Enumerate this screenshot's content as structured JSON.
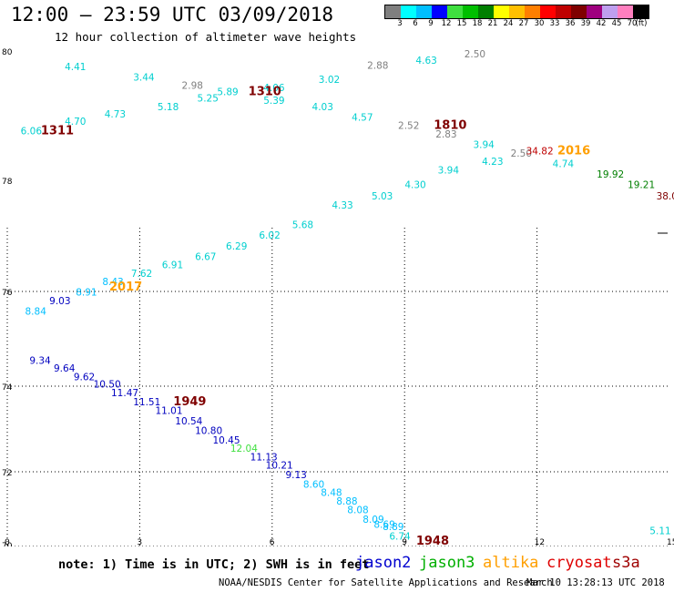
{
  "header": {
    "title": "12:00 – 23:59 UTC 03/09/2018",
    "subtitle": "12 hour collection of altimeter wave heights"
  },
  "colorbar": {
    "colors": [
      "#7f7f7f",
      "#00ffff",
      "#00bfff",
      "#0000ff",
      "#3fdf3f",
      "#00bf00",
      "#007f00",
      "#ffff00",
      "#ffbf00",
      "#ff7f00",
      "#ff0000",
      "#bf0000",
      "#7f0000",
      "#9f007f",
      "#bf9fef",
      "#ff7fbf",
      "#000000"
    ],
    "labels": [
      "3",
      "6",
      "9",
      "12",
      "15",
      "18",
      "21",
      "24",
      "27",
      "30",
      "33",
      "36",
      "39",
      "42",
      "45",
      "70",
      "(ft)"
    ]
  },
  "map": {
    "x_ticks": [
      "0",
      "3",
      "6",
      "9",
      "12",
      "15"
    ],
    "y_ticks": [
      "80",
      "78",
      "76",
      "74",
      "72",
      "70"
    ]
  },
  "observations": [
    {
      "text": "4.41",
      "color": "#00cfcf",
      "lon": 1.55,
      "lat": 79.45
    },
    {
      "text": "3.44",
      "color": "#00cfcf",
      "lon": 3.1,
      "lat": 79.2
    },
    {
      "text": "2.98",
      "color": "#7f7f7f",
      "lon": 4.2,
      "lat": 79.0
    },
    {
      "text": "4.06",
      "color": "#00cfcf",
      "lon": 6.05,
      "lat": 78.95
    },
    {
      "text": "3.02",
      "color": "#00cfcf",
      "lon": 7.3,
      "lat": 79.15
    },
    {
      "text": "2.88",
      "color": "#7f7f7f",
      "lon": 8.4,
      "lat": 79.48
    },
    {
      "text": "4.63",
      "color": "#00cfcf",
      "lon": 9.5,
      "lat": 79.6
    },
    {
      "text": "2.50",
      "color": "#7f7f7f",
      "lon": 10.6,
      "lat": 79.75
    },
    {
      "text": "5.25",
      "color": "#00cfcf",
      "lon": 4.55,
      "lat": 78.7
    },
    {
      "text": "5.89",
      "color": "#00cfcf",
      "lon": 5.0,
      "lat": 78.85
    },
    {
      "text": "5.39",
      "color": "#00cfcf",
      "lon": 6.05,
      "lat": 78.65
    },
    {
      "text": "5.18",
      "color": "#00cfcf",
      "lon": 3.65,
      "lat": 78.5
    },
    {
      "text": "4.03",
      "color": "#00cfcf",
      "lon": 7.15,
      "lat": 78.5
    },
    {
      "text": "4.70",
      "color": "#00cfcf",
      "lon": 1.55,
      "lat": 78.15
    },
    {
      "text": "4.73",
      "color": "#00cfcf",
      "lon": 2.45,
      "lat": 78.33
    },
    {
      "text": "4.57",
      "color": "#00cfcf",
      "lon": 8.05,
      "lat": 78.25
    },
    {
      "text": "6.06",
      "color": "#00cfcf",
      "lon": 0.55,
      "lat": 77.93
    },
    {
      "text": "2.52",
      "color": "#7f7f7f",
      "lon": 9.1,
      "lat": 78.05
    },
    {
      "text": "2.83",
      "color": "#7f7f7f",
      "lon": 9.95,
      "lat": 77.85
    },
    {
      "text": "3.94",
      "color": "#00cfcf",
      "lon": 10.8,
      "lat": 77.6
    },
    {
      "text": "2.50",
      "color": "#7f7f7f",
      "lon": 11.65,
      "lat": 77.4
    },
    {
      "text": "34.82",
      "color": "#bf0000",
      "lon": 12.0,
      "lat": 77.45
    },
    {
      "text": "4.23",
      "color": "#00cfcf",
      "lon": 11.0,
      "lat": 77.2
    },
    {
      "text": "4.74",
      "color": "#00cfcf",
      "lon": 12.6,
      "lat": 77.15
    },
    {
      "text": "19.92",
      "color": "#007f00",
      "lon": 13.6,
      "lat": 76.9
    },
    {
      "text": "19.21",
      "color": "#007f00",
      "lon": 14.3,
      "lat": 76.65
    },
    {
      "text": "38.0",
      "color": "#7f0000",
      "lon": 14.95,
      "lat": 76.38
    },
    {
      "text": "3.94",
      "color": "#00cfcf",
      "lon": 10.0,
      "lat": 77.0
    },
    {
      "text": "4.30",
      "color": "#00cfcf",
      "lon": 9.25,
      "lat": 76.65
    },
    {
      "text": "5.03",
      "color": "#00cfcf",
      "lon": 8.5,
      "lat": 76.38
    },
    {
      "text": "4.33",
      "color": "#00cfcf",
      "lon": 7.6,
      "lat": 76.17
    },
    {
      "text": "5.68",
      "color": "#00cfcf",
      "lon": 6.7,
      "lat": 75.7
    },
    {
      "text": "6.02",
      "color": "#00cfcf",
      "lon": 5.95,
      "lat": 75.45
    },
    {
      "text": "6.29",
      "color": "#00cfcf",
      "lon": 5.2,
      "lat": 75.2
    },
    {
      "text": "6.67",
      "color": "#00cfcf",
      "lon": 4.5,
      "lat": 74.95
    },
    {
      "text": "6.91",
      "color": "#00cfcf",
      "lon": 3.75,
      "lat": 74.75
    },
    {
      "text": "7.62",
      "color": "#00cfcf",
      "lon": 3.05,
      "lat": 74.55
    },
    {
      "text": "8.43",
      "color": "#00bfff",
      "lon": 2.4,
      "lat": 74.35
    },
    {
      "text": "8.91",
      "color": "#00bfff",
      "lon": 1.8,
      "lat": 74.1
    },
    {
      "text": "9.03",
      "color": "#0000bf",
      "lon": 1.2,
      "lat": 73.9
    },
    {
      "text": "8.84",
      "color": "#00bfff",
      "lon": 0.65,
      "lat": 73.65
    },
    {
      "text": "9.34",
      "color": "#0000bf",
      "lon": 0.75,
      "lat": 72.48
    },
    {
      "text": "9.64",
      "color": "#0000bf",
      "lon": 1.3,
      "lat": 72.3
    },
    {
      "text": "9.62",
      "color": "#0000bf",
      "lon": 1.75,
      "lat": 72.1
    },
    {
      "text": "10.50",
      "color": "#0000bf",
      "lon": 2.2,
      "lat": 71.92
    },
    {
      "text": "11.47",
      "color": "#0000bf",
      "lon": 2.6,
      "lat": 71.72
    },
    {
      "text": "11.51",
      "color": "#0000bf",
      "lon": 3.1,
      "lat": 71.5
    },
    {
      "text": "11.01",
      "color": "#0000bf",
      "lon": 3.6,
      "lat": 71.3
    },
    {
      "text": "10.54",
      "color": "#0000bf",
      "lon": 4.05,
      "lat": 71.05
    },
    {
      "text": "10.80",
      "color": "#0000bf",
      "lon": 4.5,
      "lat": 70.82
    },
    {
      "text": "10.45",
      "color": "#0000bf",
      "lon": 4.9,
      "lat": 70.6
    },
    {
      "text": "12.04",
      "color": "#3fdf3f",
      "lon": 5.3,
      "lat": 70.4
    },
    {
      "text": "11.13",
      "color": "#0000bf",
      "lon": 5.75,
      "lat": 70.2
    },
    {
      "text": "10.21",
      "color": "#0000bf",
      "lon": 6.1,
      "lat": 70.0
    },
    {
      "text": "9.13",
      "color": "#0000bf",
      "lon": 6.55,
      "lat": 69.78
    },
    {
      "text": "8.60",
      "color": "#00bfff",
      "lon": 6.95,
      "lat": 69.55
    },
    {
      "text": "8.48",
      "color": "#00bfff",
      "lon": 7.35,
      "lat": 69.35
    },
    {
      "text": "8.88",
      "color": "#00bfff",
      "lon": 7.7,
      "lat": 69.15
    },
    {
      "text": "8.08",
      "color": "#00bfff",
      "lon": 7.95,
      "lat": 68.95
    },
    {
      "text": "8.09",
      "color": "#00bfff",
      "lon": 8.3,
      "lat": 68.72
    },
    {
      "text": "8.89",
      "color": "#00bfff",
      "lon": 8.75,
      "lat": 68.55
    },
    {
      "text": "8.69",
      "color": "#00bfff",
      "lon": 8.55,
      "lat": 68.6
    },
    {
      "text": "6.74",
      "color": "#00cfcf",
      "lon": 8.9,
      "lat": 68.32
    },
    {
      "text": "5.11",
      "color": "#00cfcf",
      "lon": 14.8,
      "lat": 68.45
    }
  ],
  "passes": [
    {
      "text": "1311",
      "color": "#7f0000",
      "lon": 1.05,
      "lat": 77.93
    },
    {
      "text": "1310",
      "color": "#7f0000",
      "lon": 5.75,
      "lat": 78.85
    },
    {
      "text": "1810",
      "color": "#7f0000",
      "lon": 9.95,
      "lat": 78.05
    },
    {
      "text": "2016",
      "color": "#ff9f00",
      "lon": 12.75,
      "lat": 77.45
    },
    {
      "text": "2017",
      "color": "#ff9f00",
      "lon": 2.6,
      "lat": 74.22
    },
    {
      "text": "1949",
      "color": "#7f0000",
      "lon": 4.05,
      "lat": 71.5
    },
    {
      "text": "1948",
      "color": "#7f0000",
      "lon": 9.55,
      "lat": 68.2
    }
  ],
  "footer": {
    "note": "note: 1) Time is in UTC; 2) SWH is in feet",
    "satellites": [
      {
        "name": "jason2",
        "color": "#0000cf"
      },
      {
        "name": "jason3",
        "color": "#00af00"
      },
      {
        "name": "altika",
        "color": "#ff9f00"
      },
      {
        "name": "cryosat",
        "color": "#df0000"
      },
      {
        "name": "s3a",
        "color": "#9f0000"
      }
    ],
    "credit": "NOAA/NESDIS Center for Satellite Applications and Research",
    "timestamp": "Mar 10 13:28:13 UTC 2018"
  }
}
